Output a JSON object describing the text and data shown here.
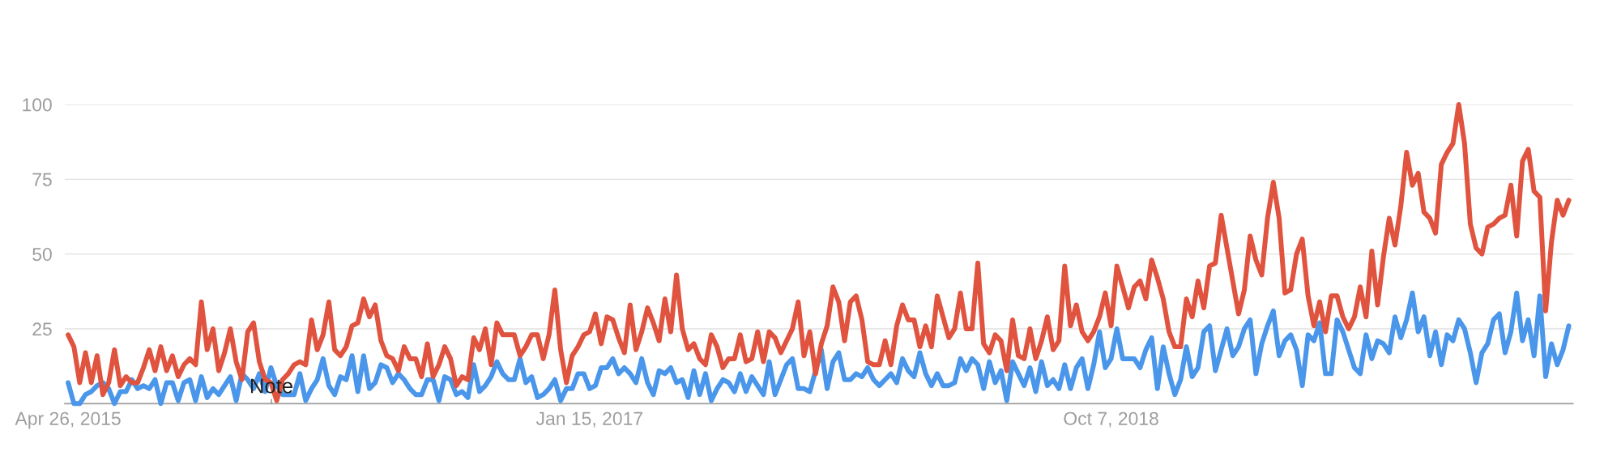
{
  "chart_data": {
    "type": "line",
    "x": [
      "2015-04-26",
      "2015-05-03",
      "2015-05-10",
      "2015-05-17",
      "2015-05-24",
      "2015-05-31",
      "2015-06-07",
      "2015-06-14",
      "2015-06-21",
      "2015-06-28",
      "2015-07-05",
      "2015-07-12",
      "2015-07-19",
      "2015-07-26",
      "2015-08-02",
      "2015-08-09",
      "2015-08-16",
      "2015-08-23",
      "2015-08-30",
      "2015-09-06",
      "2015-09-13",
      "2015-09-20",
      "2015-09-27",
      "2015-10-04",
      "2015-10-11",
      "2015-10-18",
      "2015-10-25",
      "2015-11-01",
      "2015-11-08",
      "2015-11-15",
      "2015-11-22",
      "2015-11-29",
      "2015-12-06",
      "2015-12-13",
      "2015-12-20",
      "2015-12-27",
      "2016-01-03",
      "2016-01-10",
      "2016-01-17",
      "2016-01-24",
      "2016-01-31",
      "2016-02-07",
      "2016-02-14",
      "2016-02-21",
      "2016-02-28",
      "2016-03-06",
      "2016-03-13",
      "2016-03-20",
      "2016-03-27",
      "2016-04-03",
      "2016-04-10",
      "2016-04-17",
      "2016-04-24",
      "2016-05-01",
      "2016-05-08",
      "2016-05-15",
      "2016-05-22",
      "2016-05-29",
      "2016-06-05",
      "2016-06-12",
      "2016-06-19",
      "2016-06-26",
      "2016-07-03",
      "2016-07-10",
      "2016-07-17",
      "2016-07-24",
      "2016-07-31",
      "2016-08-07",
      "2016-08-14",
      "2016-08-21",
      "2016-08-28",
      "2016-09-04",
      "2016-09-11",
      "2016-09-18",
      "2016-09-25",
      "2016-10-02",
      "2016-10-09",
      "2016-10-16",
      "2016-10-23",
      "2016-10-30",
      "2016-11-06",
      "2016-11-13",
      "2016-11-20",
      "2016-11-27",
      "2016-12-04",
      "2016-12-11",
      "2016-12-18",
      "2016-12-25",
      "2017-01-01",
      "2017-01-08",
      "2017-01-15",
      "2017-01-22",
      "2017-01-29",
      "2017-02-05",
      "2017-02-12",
      "2017-02-19",
      "2017-02-26",
      "2017-03-05",
      "2017-03-12",
      "2017-03-19",
      "2017-03-26",
      "2017-04-02",
      "2017-04-09",
      "2017-04-16",
      "2017-04-23",
      "2017-04-30",
      "2017-05-07",
      "2017-05-14",
      "2017-05-21",
      "2017-05-28",
      "2017-06-04",
      "2017-06-11",
      "2017-06-18",
      "2017-06-25",
      "2017-07-02",
      "2017-07-09",
      "2017-07-16",
      "2017-07-23",
      "2017-07-30",
      "2017-08-06",
      "2017-08-13",
      "2017-08-20",
      "2017-08-27",
      "2017-09-03",
      "2017-09-10",
      "2017-09-17",
      "2017-09-24",
      "2017-10-01",
      "2017-10-08",
      "2017-10-15",
      "2017-10-22",
      "2017-10-29",
      "2017-11-05",
      "2017-11-12",
      "2017-11-19",
      "2017-11-26",
      "2017-12-03",
      "2017-12-10",
      "2017-12-17",
      "2017-12-24",
      "2017-12-31",
      "2018-01-07",
      "2018-01-14",
      "2018-01-21",
      "2018-01-28",
      "2018-02-04",
      "2018-02-11",
      "2018-02-18",
      "2018-02-25",
      "2018-03-04",
      "2018-03-11",
      "2018-03-18",
      "2018-03-25",
      "2018-04-01",
      "2018-04-08",
      "2018-04-15",
      "2018-04-22",
      "2018-04-29",
      "2018-05-06",
      "2018-05-13",
      "2018-05-20",
      "2018-05-27",
      "2018-06-03",
      "2018-06-10",
      "2018-06-17",
      "2018-06-24",
      "2018-07-01",
      "2018-07-08",
      "2018-07-15",
      "2018-07-22",
      "2018-07-29",
      "2018-08-05",
      "2018-08-12",
      "2018-08-19",
      "2018-08-26",
      "2018-09-02",
      "2018-09-09",
      "2018-09-16",
      "2018-09-23",
      "2018-09-30",
      "2018-10-07",
      "2018-10-14",
      "2018-10-21",
      "2018-10-28",
      "2018-11-04",
      "2018-11-11",
      "2018-11-18",
      "2018-11-25",
      "2018-12-02",
      "2018-12-09",
      "2018-12-16",
      "2018-12-23",
      "2018-12-30",
      "2019-01-06",
      "2019-01-13",
      "2019-01-20",
      "2019-01-27",
      "2019-02-03",
      "2019-02-10",
      "2019-02-17",
      "2019-02-24",
      "2019-03-03",
      "2019-03-10",
      "2019-03-17",
      "2019-03-24",
      "2019-03-31",
      "2019-04-07",
      "2019-04-14",
      "2019-04-21",
      "2019-04-28",
      "2019-05-05",
      "2019-05-12",
      "2019-05-19",
      "2019-05-26",
      "2019-06-02",
      "2019-06-09",
      "2019-06-16",
      "2019-06-23",
      "2019-06-30",
      "2019-07-07",
      "2019-07-14",
      "2019-07-21",
      "2019-07-28",
      "2019-08-04",
      "2019-08-11",
      "2019-08-18",
      "2019-08-25",
      "2019-09-01",
      "2019-09-08",
      "2019-09-15",
      "2019-09-22",
      "2019-09-29",
      "2019-10-06",
      "2019-10-13",
      "2019-10-20",
      "2019-10-27",
      "2019-11-03",
      "2019-11-10",
      "2019-11-17",
      "2019-11-24",
      "2019-12-01",
      "2019-12-08",
      "2019-12-15",
      "2019-12-22",
      "2019-12-29",
      "2020-01-05",
      "2020-01-12",
      "2020-01-19",
      "2020-01-26",
      "2020-02-02",
      "2020-02-09",
      "2020-02-16",
      "2020-02-23",
      "2020-03-01",
      "2020-03-08",
      "2020-03-15",
      "2020-03-22",
      "2020-03-29",
      "2020-04-05",
      "2020-04-12"
    ],
    "series": [
      {
        "color": "#4a96ea",
        "values": [
          7,
          0,
          0,
          3,
          4,
          6,
          7,
          5,
          0,
          4,
          4,
          8,
          5,
          6,
          5,
          8,
          0,
          7,
          7,
          1,
          7,
          8,
          1,
          9,
          2,
          5,
          3,
          6,
          9,
          1,
          10,
          8,
          5,
          10,
          4,
          12,
          6,
          3,
          3,
          3,
          10,
          1,
          5,
          8,
          15,
          6,
          3,
          9,
          8,
          16,
          4,
          16,
          5,
          7,
          13,
          12,
          7,
          10,
          8,
          5,
          3,
          3,
          8,
          8,
          1,
          9,
          8,
          3,
          4,
          2,
          13,
          4,
          6,
          9,
          14,
          10,
          8,
          8,
          15,
          7,
          9,
          2,
          3,
          5,
          8,
          1,
          5,
          5,
          10,
          10,
          5,
          6,
          12,
          12,
          15,
          10,
          12,
          10,
          7,
          15,
          7,
          3,
          11,
          10,
          12,
          7,
          8,
          2,
          11,
          3,
          10,
          1,
          5,
          8,
          7,
          4,
          10,
          4,
          9,
          6,
          3,
          14,
          3,
          8,
          13,
          15,
          5,
          5,
          4,
          11,
          18,
          5,
          14,
          17,
          8,
          8,
          10,
          9,
          12,
          8,
          6,
          8,
          10,
          7,
          15,
          11,
          9,
          17,
          10,
          6,
          10,
          6,
          6,
          7,
          15,
          11,
          15,
          13,
          5,
          14,
          7,
          11,
          1,
          14,
          10,
          6,
          12,
          4,
          14,
          6,
          8,
          5,
          13,
          5,
          12,
          15,
          5,
          13,
          24,
          12,
          15,
          25,
          15,
          15,
          15,
          12,
          18,
          22,
          5,
          19,
          10,
          3,
          8,
          19,
          9,
          12,
          24,
          26,
          11,
          18,
          25,
          16,
          19,
          25,
          28,
          10,
          20,
          26,
          31,
          16,
          21,
          23,
          18,
          6,
          23,
          21,
          27,
          10,
          10,
          28,
          24,
          18,
          12,
          10,
          23,
          15,
          21,
          20,
          17,
          29,
          22,
          28,
          37,
          24,
          29,
          16,
          24,
          13,
          23,
          21,
          28,
          25,
          17,
          7,
          17,
          20,
          28,
          30,
          17,
          24,
          37,
          21,
          28,
          16,
          36,
          9,
          20,
          13,
          18,
          26
        ]
      },
      {
        "color": "#e0533f",
        "values": [
          23,
          19,
          7,
          17,
          7,
          16,
          3,
          7,
          18,
          6,
          9,
          7,
          7,
          12,
          18,
          11,
          19,
          11,
          16,
          9,
          13,
          15,
          13,
          34,
          18,
          25,
          11,
          17,
          25,
          14,
          8,
          24,
          27,
          14,
          8,
          7,
          1,
          8,
          10,
          13,
          14,
          13,
          28,
          18,
          23,
          34,
          18,
          16,
          19,
          26,
          27,
          35,
          29,
          33,
          21,
          16,
          15,
          11,
          19,
          15,
          15,
          9,
          20,
          9,
          13,
          19,
          15,
          6,
          9,
          8,
          22,
          18,
          25,
          13,
          27,
          23,
          23,
          23,
          16,
          19,
          23,
          23,
          15,
          23,
          38,
          18,
          7,
          16,
          19,
          23,
          24,
          30,
          20,
          29,
          28,
          22,
          17,
          33,
          18,
          24,
          32,
          27,
          21,
          35,
          24,
          43,
          25,
          18,
          20,
          15,
          13,
          23,
          19,
          12,
          15,
          15,
          23,
          14,
          15,
          24,
          14,
          24,
          22,
          17,
          21,
          25,
          34,
          16,
          24,
          10,
          20,
          26,
          39,
          34,
          21,
          34,
          36,
          28,
          14,
          13,
          13,
          21,
          13,
          26,
          33,
          28,
          28,
          19,
          26,
          19,
          36,
          29,
          22,
          25,
          37,
          25,
          25,
          47,
          20,
          17,
          23,
          21,
          11,
          28,
          16,
          15,
          25,
          15,
          21,
          29,
          18,
          21,
          46,
          26,
          33,
          24,
          21,
          24,
          29,
          37,
          26,
          46,
          39,
          32,
          39,
          41,
          35,
          48,
          42,
          35,
          24,
          19,
          19,
          35,
          29,
          41,
          32,
          46,
          47,
          63,
          52,
          41,
          30,
          38,
          56,
          48,
          43,
          62,
          74,
          62,
          37,
          38,
          50,
          55,
          36,
          26,
          34,
          24,
          36,
          36,
          29,
          25,
          29,
          39,
          29,
          51,
          33,
          49,
          62,
          53,
          66,
          84,
          73,
          77,
          64,
          62,
          57,
          80,
          84,
          87,
          100,
          87,
          60,
          52,
          50,
          59,
          60,
          62,
          63,
          73,
          56,
          81,
          85,
          71,
          69,
          31,
          54,
          68,
          63,
          68
        ]
      }
    ],
    "xlim": [
      "2015-04-22",
      "2020-04-17"
    ],
    "xticks": [
      {
        "value": "2015-04-26",
        "label": "Apr 26, 2015"
      },
      {
        "value": "2017-01-15",
        "label": "Jan 15, 2017"
      },
      {
        "value": "2018-10-07",
        "label": "Oct 7, 2018"
      }
    ],
    "ylim": [
      0,
      100
    ],
    "yticks": [
      25,
      50,
      75,
      100
    ],
    "grid": "y",
    "annotations": [
      "Note"
    ]
  }
}
